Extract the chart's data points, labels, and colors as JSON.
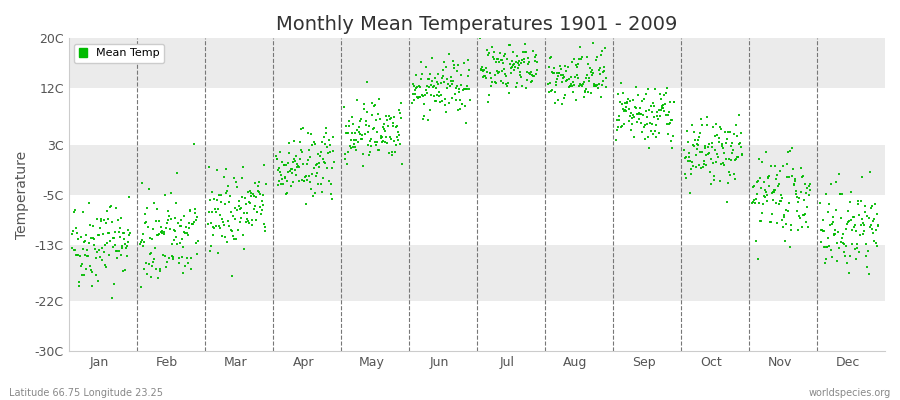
{
  "title": "Monthly Mean Temperatures 1901 - 2009",
  "ylabel": "Temperature",
  "subtitle": "Latitude 66.75 Longitude 23.25",
  "watermark": "worldspecies.org",
  "yticks": [
    -30,
    -22,
    -13,
    -5,
    3,
    12,
    20
  ],
  "ytick_labels": [
    "-30C",
    "-22C",
    "-13C",
    "-5C",
    "3C",
    "12C",
    "20C"
  ],
  "ylim": [
    -30,
    20
  ],
  "months": [
    "Jan",
    "Feb",
    "Mar",
    "Apr",
    "May",
    "Jun",
    "Jul",
    "Aug",
    "Sep",
    "Oct",
    "Nov",
    "Dec"
  ],
  "dot_color": "#00bb00",
  "dot_size": 3,
  "bg_color": "#ffffff",
  "plot_bg_color": "#f5f5f5",
  "band_light": "#ffffff",
  "band_dark": "#ebebeb",
  "monthly_mean_temps": {
    "Jan": -12.5,
    "Feb": -12.0,
    "Mar": -7.5,
    "Apr": -0.5,
    "May": 5.5,
    "Jun": 12.0,
    "Jul": 15.5,
    "Aug": 13.5,
    "Sep": 7.5,
    "Oct": 1.5,
    "Nov": -5.5,
    "Dec": -10.5
  },
  "monthly_std_temps": {
    "Jan": 3.5,
    "Feb": 3.8,
    "Mar": 3.2,
    "Apr": 2.8,
    "May": 2.5,
    "Jun": 2.2,
    "Jul": 2.0,
    "Aug": 2.2,
    "Sep": 2.3,
    "Oct": 2.8,
    "Nov": 3.2,
    "Dec": 3.5
  },
  "warming_trend": 0.01,
  "n_years": 109,
  "start_year": 1901,
  "end_year": 2009
}
